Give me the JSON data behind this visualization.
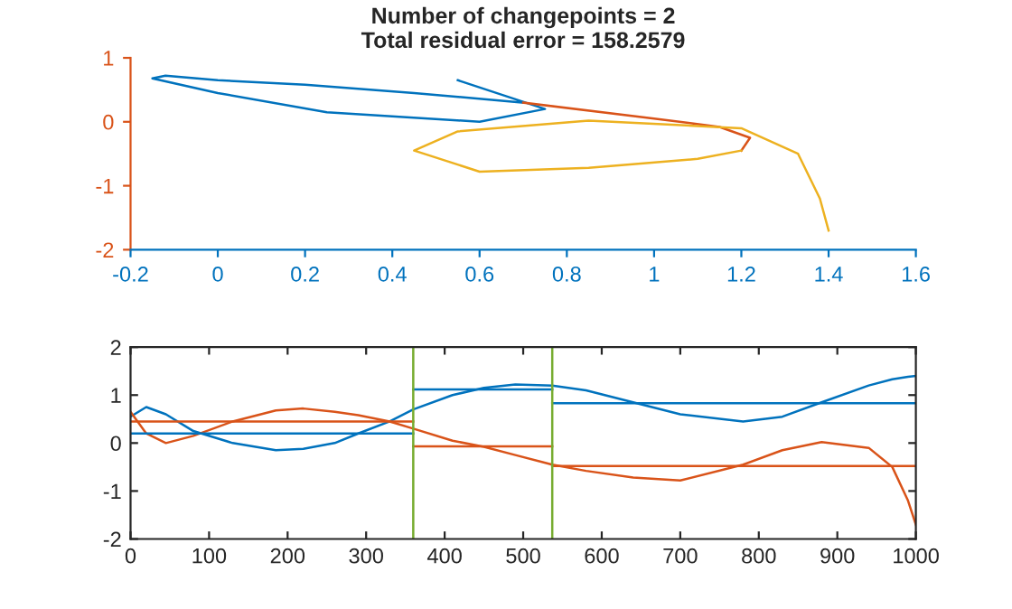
{
  "chart_data": [
    {
      "type": "line",
      "title": "Number of changepoints = 2\nTotal residual error = 158.2579",
      "xlim": [
        -0.2,
        1.6
      ],
      "xticks": [
        -0.2,
        0,
        0.2,
        0.4,
        0.6,
        0.8,
        1,
        1.2,
        1.4,
        1.6
      ],
      "ylim": [
        -2,
        1
      ],
      "yticks": [
        -2,
        -1,
        0,
        1
      ],
      "series": [
        {
          "color": "#0072bd",
          "x": [
            0.55,
            0.75,
            0.6,
            0.25,
            0.0,
            -0.15,
            -0.12,
            0.0,
            0.2,
            0.45,
            0.7
          ],
          "values": [
            0.65,
            0.2,
            0.0,
            0.15,
            0.45,
            0.68,
            0.72,
            0.65,
            0.58,
            0.45,
            0.3
          ]
        },
        {
          "color": "#d95319",
          "x": [
            0.7,
            1.0,
            1.15,
            1.22,
            1.2
          ],
          "values": [
            0.3,
            0.05,
            -0.08,
            -0.25,
            -0.45
          ]
        },
        {
          "color": "#edb120",
          "x": [
            1.2,
            1.1,
            0.85,
            0.6,
            0.45,
            0.55,
            0.85,
            1.2,
            1.33,
            1.38,
            1.4
          ],
          "values": [
            -0.45,
            -0.58,
            -0.72,
            -0.78,
            -0.45,
            -0.15,
            0.02,
            -0.1,
            -0.5,
            -1.2,
            -1.7
          ]
        }
      ]
    },
    {
      "type": "line",
      "xlim": [
        0,
        1000
      ],
      "xticks": [
        0,
        100,
        200,
        300,
        400,
        500,
        600,
        700,
        800,
        900,
        1000
      ],
      "ylim": [
        -2,
        2
      ],
      "yticks": [
        -2,
        -1,
        0,
        1,
        2
      ],
      "series": [
        {
          "color": "#0072bd",
          "x": [
            0,
            20,
            45,
            80,
            130,
            185,
            220,
            260,
            290,
            330,
            360,
            410,
            450,
            490,
            537,
            580,
            640,
            700,
            780,
            830,
            880,
            940,
            970,
            990,
            1000
          ],
          "values": [
            0.55,
            0.75,
            0.6,
            0.25,
            0.0,
            -0.15,
            -0.12,
            0.0,
            0.2,
            0.45,
            0.7,
            1.0,
            1.15,
            1.22,
            1.2,
            1.1,
            0.85,
            0.6,
            0.45,
            0.55,
            0.85,
            1.2,
            1.33,
            1.38,
            1.4
          ]
        },
        {
          "color": "#d95319",
          "x": [
            0,
            20,
            45,
            80,
            130,
            185,
            220,
            260,
            290,
            330,
            360,
            410,
            450,
            490,
            537,
            580,
            640,
            700,
            780,
            830,
            880,
            940,
            970,
            990,
            1000
          ],
          "values": [
            0.65,
            0.2,
            0.0,
            0.15,
            0.45,
            0.68,
            0.72,
            0.65,
            0.58,
            0.45,
            0.3,
            0.05,
            -0.08,
            -0.25,
            -0.45,
            -0.58,
            -0.72,
            -0.78,
            -0.45,
            -0.15,
            0.02,
            -0.1,
            -0.5,
            -1.2,
            -1.7
          ]
        },
        {
          "color": "#0072bd",
          "x": [
            0,
            360
          ],
          "values": [
            0.2,
            0.2
          ]
        },
        {
          "color": "#0072bd",
          "x": [
            360,
            537
          ],
          "values": [
            1.12,
            1.12
          ]
        },
        {
          "color": "#0072bd",
          "x": [
            537,
            1000
          ],
          "values": [
            0.83,
            0.83
          ]
        },
        {
          "color": "#d95319",
          "x": [
            0,
            360
          ],
          "values": [
            0.45,
            0.45
          ]
        },
        {
          "color": "#d95319",
          "x": [
            360,
            537
          ],
          "values": [
            -0.07,
            -0.07
          ]
        },
        {
          "color": "#d95319",
          "x": [
            537,
            1000
          ],
          "values": [
            -0.48,
            -0.48
          ]
        }
      ],
      "ref_lines": [
        {
          "axis": "x",
          "value": 360,
          "color": "#77ac30"
        },
        {
          "axis": "x",
          "value": 537,
          "color": "#77ac30"
        }
      ]
    }
  ]
}
